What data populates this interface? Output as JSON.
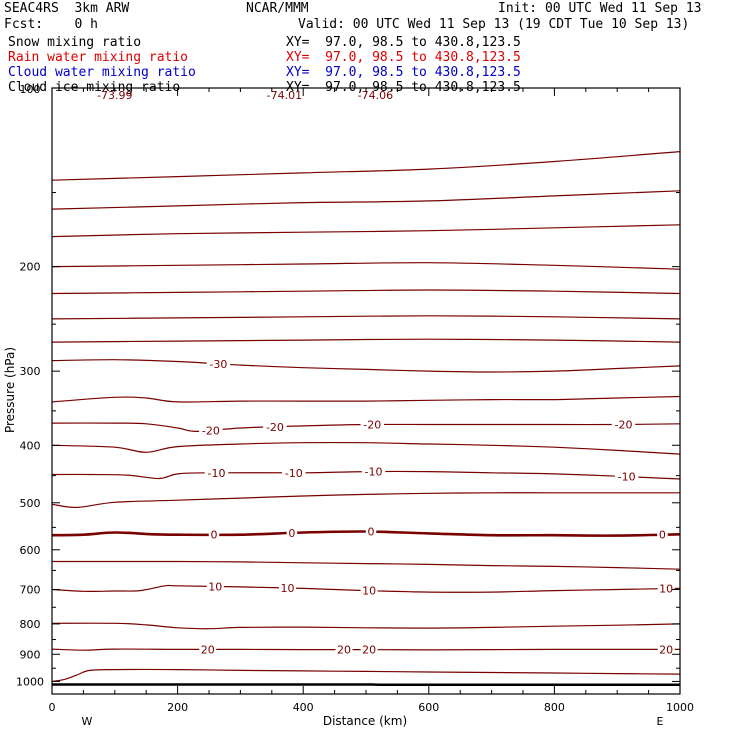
{
  "header": {
    "model": "SEAC4RS  3km ARW",
    "org": "NCAR/MMM",
    "init": "Init: 00 UTC Wed 11 Sep 13",
    "fcst": "Fcst:    0 h",
    "valid": "Valid: 00 UTC Wed 11 Sep 13 (19 CDT Tue 10 Sep 13)"
  },
  "fields": [
    {
      "name": "Snow mixing ratio",
      "xy": "XY=  97.0, 98.5 to 430.8,123.5",
      "color": "#000000"
    },
    {
      "name": "Rain water mixing ratio",
      "xy": "XY=  97.0, 98.5 to 430.8,123.5",
      "color": "#e00000"
    },
    {
      "name": "Cloud water mixing ratio",
      "xy": "XY=  97.0, 98.5 to 430.8,123.5",
      "color": "#0000cc"
    },
    {
      "name": "Cloud ice mixing ratio",
      "xy": "XY=  97.0, 98.5 to 430.8,123.5",
      "color": "#000000"
    }
  ],
  "colors": {
    "contour": "#7a0000",
    "ground": "#000000",
    "axes": "#000000"
  },
  "chart_data": {
    "type": "line",
    "title": "",
    "xlabel": "Distance (km)",
    "ylabel": "Pressure (hPa)",
    "xlim": [
      0,
      1000
    ],
    "ylim": [
      1050,
      100
    ],
    "y_scale": "log",
    "x_ticks": [
      0,
      200,
      400,
      600,
      800,
      1000
    ],
    "y_ticks": [
      200,
      300,
      400,
      500,
      600,
      700,
      800,
      900,
      1000
    ],
    "y_top_label": "100",
    "x_end_labels": {
      "left": "W",
      "right": "E"
    },
    "top_values": [
      {
        "x": 100,
        "text": "-73.99"
      },
      {
        "x": 370,
        "text": "-74.01"
      },
      {
        "x": 515,
        "text": "-74.06"
      }
    ],
    "contour_interval": 5,
    "contours": [
      {
        "value": -65,
        "x": [
          0,
          200,
          400,
          600,
          800,
          1000
        ],
        "p": [
          143,
          141,
          139,
          137,
          133,
          128
        ],
        "labels": []
      },
      {
        "value": -60,
        "x": [
          0,
          200,
          400,
          600,
          800,
          1000
        ],
        "p": [
          160,
          158,
          156,
          155,
          152,
          149
        ],
        "labels": []
      },
      {
        "value": -55,
        "x": [
          0,
          200,
          400,
          600,
          800,
          1000
        ],
        "p": [
          178,
          176,
          175,
          174,
          172,
          170
        ],
        "labels": []
      },
      {
        "value": -50,
        "x": [
          0,
          200,
          400,
          600,
          800,
          1000
        ],
        "p": [
          200,
          199,
          198,
          197,
          199,
          202
        ],
        "labels": []
      },
      {
        "value": -45,
        "x": [
          0,
          200,
          400,
          600,
          800,
          1000
        ],
        "p": [
          222,
          221,
          220,
          219,
          220,
          222
        ],
        "labels": []
      },
      {
        "value": -40,
        "x": [
          0,
          200,
          400,
          600,
          800,
          1000
        ],
        "p": [
          245,
          244,
          243,
          242,
          243,
          245
        ],
        "labels": []
      },
      {
        "value": -35,
        "x": [
          0,
          200,
          400,
          600,
          800,
          1000
        ],
        "p": [
          268,
          267,
          266,
          265,
          266,
          268
        ],
        "labels": []
      },
      {
        "value": -30,
        "x": [
          0,
          100,
          200,
          300,
          400,
          500,
          600,
          700,
          800,
          900,
          1000
        ],
        "p": [
          288,
          287,
          289,
          293,
          296,
          298,
          300,
          301,
          300,
          297,
          294
        ],
        "labels": [
          {
            "x": 265,
            "text": "-30"
          }
        ]
      },
      {
        "value": -25,
        "x": [
          0,
          100,
          150,
          200,
          300,
          400,
          500,
          600,
          700,
          800,
          900,
          1000
        ],
        "p": [
          338,
          332,
          333,
          338,
          337,
          337,
          337,
          336,
          335,
          335,
          333,
          331
        ],
        "labels": []
      },
      {
        "value": -20,
        "x": [
          0,
          100,
          150,
          200,
          230,
          300,
          400,
          500,
          600,
          700,
          800,
          900,
          1000
        ],
        "p": [
          367,
          367,
          368,
          374,
          379,
          374,
          371,
          369,
          369,
          369,
          369,
          369,
          368
        ],
        "labels": [
          {
            "x": 253,
            "text": "-20"
          },
          {
            "x": 355,
            "text": "-20"
          },
          {
            "x": 510,
            "text": "-20"
          },
          {
            "x": 910,
            "text": "-20"
          }
        ]
      },
      {
        "value": -15,
        "x": [
          0,
          100,
          150,
          200,
          300,
          400,
          500,
          600,
          700,
          800,
          900,
          1000
        ],
        "p": [
          400,
          403,
          411,
          402,
          398,
          396,
          396,
          398,
          400,
          403,
          408,
          414
        ],
        "labels": []
      },
      {
        "value": -10,
        "x": [
          0,
          60,
          120,
          170,
          200,
          250,
          400,
          500,
          600,
          700,
          800,
          900,
          1000
        ],
        "p": [
          448,
          448,
          449,
          455,
          447,
          445,
          445,
          443,
          443,
          445,
          447,
          451,
          456
        ],
        "labels": [
          {
            "x": 262,
            "text": "-10"
          },
          {
            "x": 385,
            "text": "-10"
          },
          {
            "x": 512,
            "text": "-10"
          },
          {
            "x": 915,
            "text": "-10"
          }
        ]
      },
      {
        "value": -5,
        "x": [
          0,
          40,
          100,
          200,
          300,
          400,
          500,
          600,
          700,
          800,
          900,
          1000
        ],
        "p": [
          503,
          509,
          499,
          495,
          491,
          487,
          484,
          482,
          481,
          481,
          481,
          481
        ],
        "labels": []
      },
      {
        "value": 0,
        "x": [
          0,
          50,
          100,
          160,
          200,
          300,
          400,
          500,
          600,
          700,
          800,
          900,
          1000
        ],
        "p": [
          567,
          566,
          561,
          565,
          566,
          566,
          561,
          559,
          563,
          567,
          567,
          568,
          565
        ],
        "labels": [
          {
            "x": 258,
            "text": "0"
          },
          {
            "x": 382,
            "text": "0"
          },
          {
            "x": 508,
            "text": "0"
          },
          {
            "x": 972,
            "text": "0"
          }
        ]
      },
      {
        "value": 5,
        "x": [
          0,
          100,
          200,
          300,
          400,
          500,
          600,
          700,
          800,
          900,
          1000
        ],
        "p": [
          628,
          628,
          628,
          629,
          631,
          633,
          635,
          638,
          640,
          643,
          647
        ],
        "labels": []
      },
      {
        "value": 10,
        "x": [
          0,
          50,
          100,
          140,
          180,
          200,
          300,
          400,
          500,
          600,
          700,
          800,
          900,
          1000
        ],
        "p": [
          700,
          705,
          704,
          703,
          690,
          690,
          693,
          697,
          703,
          707,
          707,
          703,
          700,
          697
        ],
        "labels": [
          {
            "x": 260,
            "text": "10"
          },
          {
            "x": 375,
            "text": "10"
          },
          {
            "x": 505,
            "text": "10"
          },
          {
            "x": 978,
            "text": "10"
          }
        ]
      },
      {
        "value": 15,
        "x": [
          0,
          100,
          150,
          200,
          250,
          300,
          400,
          500,
          600,
          700,
          800,
          900,
          1000
        ],
        "p": [
          798,
          798,
          803,
          812,
          815,
          811,
          810,
          812,
          813,
          811,
          807,
          804,
          800
        ],
        "labels": []
      },
      {
        "value": 20,
        "x": [
          0,
          50,
          100,
          200,
          300,
          400,
          500,
          600,
          700,
          800,
          900,
          1000
        ],
        "p": [
          882,
          886,
          882,
          883,
          883,
          884,
          884,
          885,
          884,
          883,
          883,
          883
        ],
        "labels": [
          {
            "x": 248,
            "text": "20"
          },
          {
            "x": 465,
            "text": "20"
          },
          {
            "x": 505,
            "text": "20"
          },
          {
            "x": 978,
            "text": "20"
          }
        ]
      },
      {
        "value": 25,
        "x": [
          0,
          20,
          40,
          60,
          100,
          200,
          300,
          400,
          500,
          600,
          700,
          800,
          900,
          1000
        ],
        "p": [
          1000,
          992,
          975,
          958,
          955,
          955,
          958,
          960,
          962,
          964,
          966,
          968,
          970,
          972
        ],
        "labels": []
      }
    ],
    "ground": {
      "x": [
        0,
        510,
        520,
        1000
      ],
      "p": [
        1012,
        1012,
        1013,
        1013
      ]
    }
  }
}
